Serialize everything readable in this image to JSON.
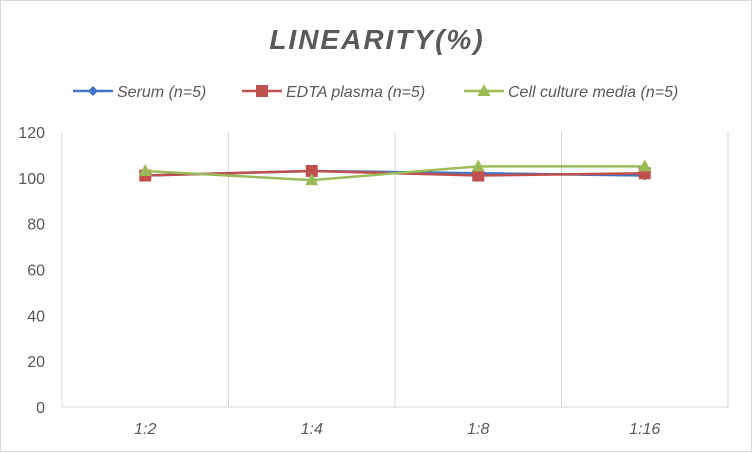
{
  "chart_data": {
    "type": "line",
    "title": "LINEARITY(%)",
    "xlabel": "",
    "ylabel": "",
    "categories": [
      "1:2",
      "1:4",
      "1:8",
      "1:16"
    ],
    "ylim": [
      0,
      120
    ],
    "yticks": [
      0,
      20,
      40,
      60,
      80,
      100,
      120
    ],
    "grid": "vertical",
    "legend_position": "top",
    "series": [
      {
        "name": "Serum (n=5)",
        "color": "#4472c4",
        "marker": "diamond",
        "values": [
          101,
          103,
          102,
          101
        ]
      },
      {
        "name": "EDTA plasma (n=5)",
        "color": "#c0504d",
        "marker": "square",
        "values": [
          101,
          103,
          101,
          102
        ]
      },
      {
        "name": "Cell culture media (n=5)",
        "color": "#9bbb59",
        "marker": "triangle",
        "values": [
          103,
          99,
          105,
          105
        ]
      }
    ]
  }
}
